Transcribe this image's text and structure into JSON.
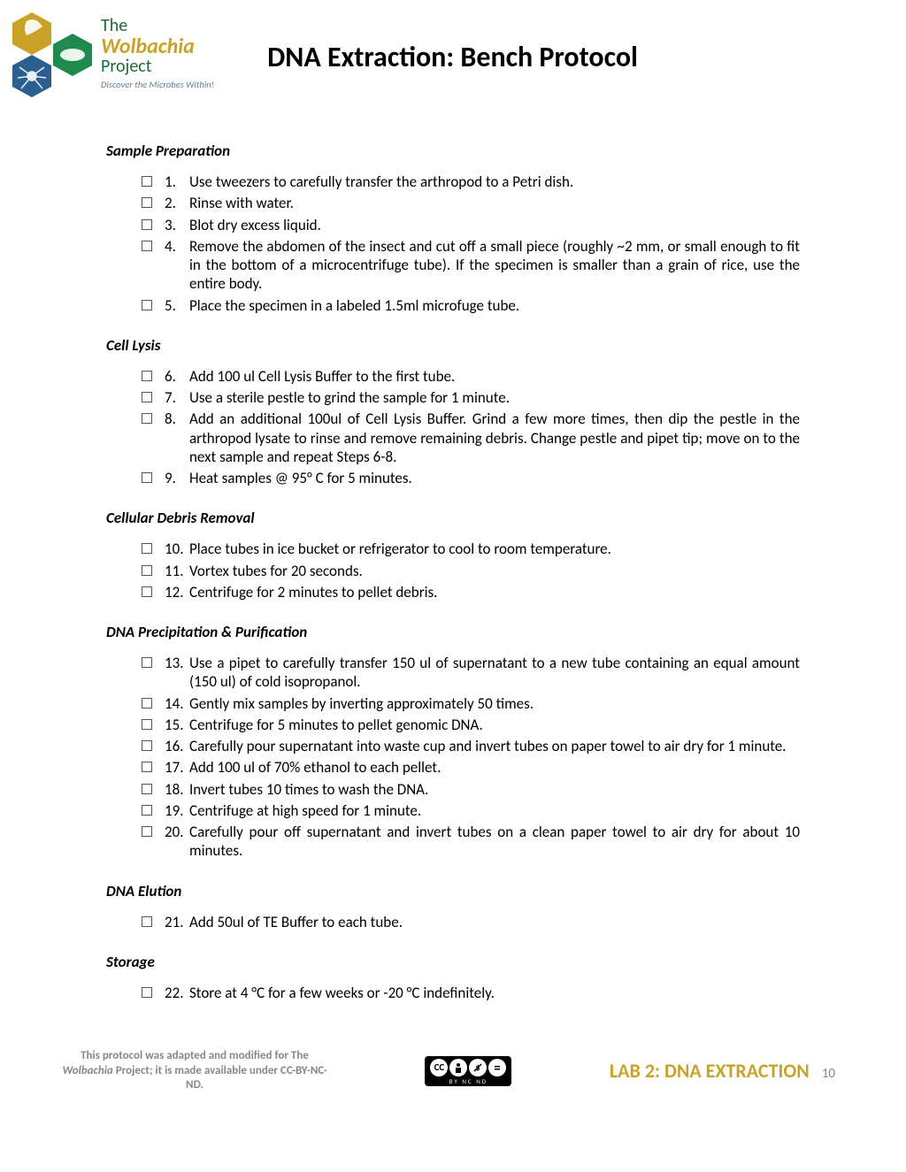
{
  "logo": {
    "line1": "The",
    "line2": "Wolbachia",
    "line3": "Project",
    "tagline": "Discover the Microbes Within!",
    "hex_colors": [
      "#c9a227",
      "#1f8a4c",
      "#2b5f8f"
    ]
  },
  "title": "DNA Extraction: Bench Protocol",
  "sections": [
    {
      "heading": "Sample Preparation",
      "steps": [
        {
          "n": "1.",
          "text": "Use tweezers to carefully transfer the arthropod to a Petri dish."
        },
        {
          "n": "2.",
          "text": "Rinse with water."
        },
        {
          "n": "3.",
          "text": "Blot dry excess liquid."
        },
        {
          "n": "4.",
          "text": "Remove the abdomen of the insect and cut off a small piece (roughly ~2 mm, or small enough to fit in the bottom of a microcentrifuge tube).  If the specimen is smaller than a grain of rice, use the entire body."
        },
        {
          "n": "5.",
          "text": "Place the specimen in a labeled 1.5ml microfuge tube."
        }
      ]
    },
    {
      "heading": "Cell Lysis",
      "steps": [
        {
          "n": "6.",
          "text": "Add 100 ul Cell Lysis Buffer to the first tube."
        },
        {
          "n": "7.",
          "text": "Use a sterile pestle to grind the sample for 1 minute."
        },
        {
          "n": "8.",
          "text": "Add an additional 100ul of Cell Lysis Buffer. Grind a few more times, then dip the pestle in the arthropod lysate to rinse and remove remaining debris. Change pestle and pipet tip; move on to the next sample and repeat Steps 6-8."
        },
        {
          "n": "9.",
          "text": "Heat samples @ 95° C for 5 minutes."
        }
      ]
    },
    {
      "heading": "Cellular Debris Removal",
      "steps": [
        {
          "n": "10.",
          "text": "Place tubes in ice bucket or refrigerator to cool to room temperature."
        },
        {
          "n": "11.",
          "text": "Vortex tubes for 20 seconds."
        },
        {
          "n": "12.",
          "text": "Centrifuge for 2 minutes to pellet debris."
        }
      ]
    },
    {
      "heading": "DNA Precipitation & Purification",
      "steps": [
        {
          "n": "13.",
          "text": "Use a pipet to carefully transfer 150 ul of supernatant to a new tube containing an equal amount (150 ul) of cold isopropanol."
        },
        {
          "n": "14.",
          "text": "Gently mix samples by inverting approximately 50 times."
        },
        {
          "n": "15.",
          "text": "Centrifuge for 5 minutes to pellet genomic DNA."
        },
        {
          "n": "16.",
          "text": "Carefully pour supernatant into waste cup and invert tubes on paper towel to air dry for 1 minute."
        },
        {
          "n": "17.",
          "text": "Add 100 ul of 70% ethanol to each pellet."
        },
        {
          "n": "18.",
          "text": "Invert tubes 10 times to wash the DNA."
        },
        {
          "n": "19.",
          "text": "Centrifuge at high speed for 1 minute."
        },
        {
          "n": "20.",
          "text": "Carefully pour off supernatant and invert tubes on a clean paper towel to air dry for about 10 minutes."
        }
      ]
    },
    {
      "heading": "DNA Elution",
      "steps": [
        {
          "n": "21.",
          "text": "Add 50ul of TE Buffer to each tube."
        }
      ]
    },
    {
      "heading": "Storage",
      "steps": [
        {
          "n": "22.",
          "text": "Store at 4 °C for a few weeks or -20 °C indefinitely."
        }
      ]
    }
  ],
  "footer": {
    "left_pre": "This protocol was adapted and modified for The ",
    "left_ital": "Wolbachia",
    "left_post": " Project; it is made available under CC-BY-NC-ND.",
    "cc_text": "CC",
    "cc_sub": "BY   NC   ND",
    "lab": "LAB 2: DNA EXTRACTION",
    "page": "10"
  }
}
